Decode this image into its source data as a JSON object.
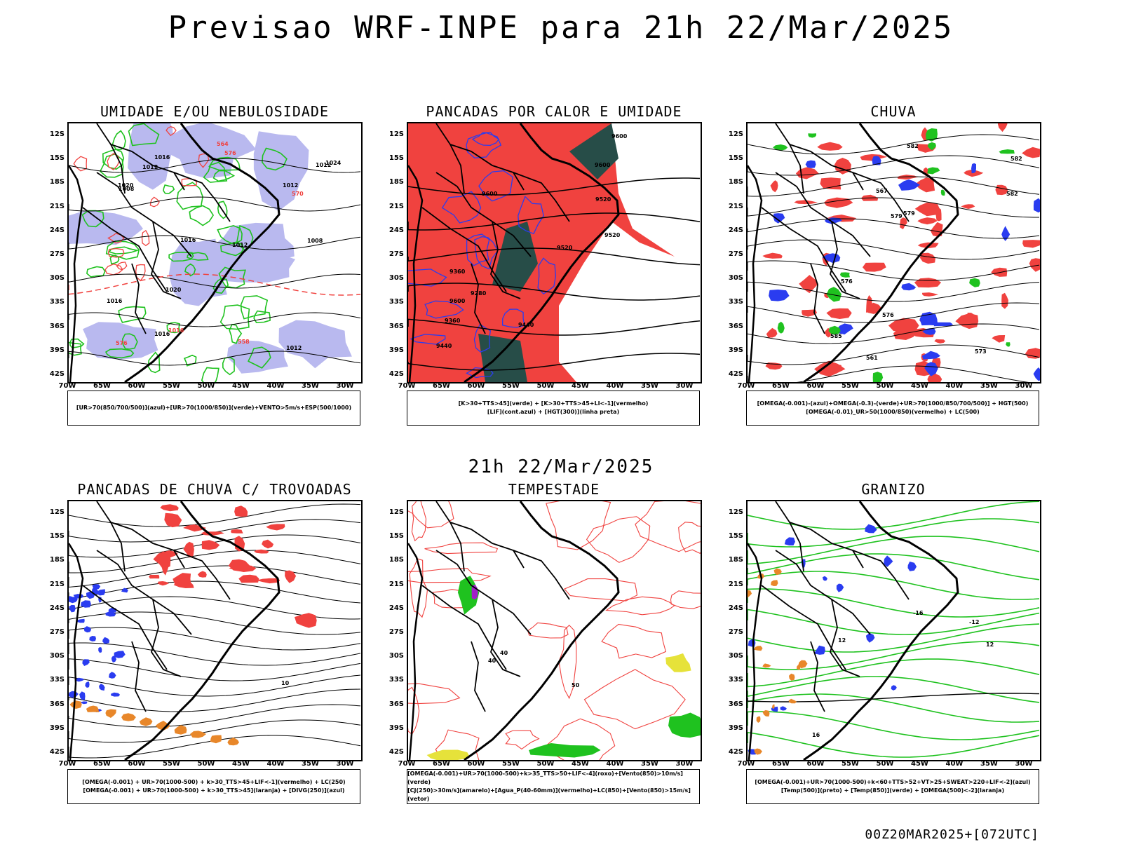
{
  "header": {
    "title": "Previsao WRF-INPE  para 21h 22/Mar/2025",
    "mid_time": "21h 22/Mar/2025",
    "footer": "00Z20MAR2025+[072UTC]"
  },
  "axes": {
    "lat_labels": [
      "12S",
      "15S",
      "18S",
      "21S",
      "24S",
      "27S",
      "30S",
      "33S",
      "36S",
      "39S",
      "42S"
    ],
    "lon_labels": [
      "70W",
      "65W",
      "60W",
      "55W",
      "50W",
      "45W",
      "40W",
      "35W",
      "30W"
    ]
  },
  "panels": [
    {
      "id": "umidade",
      "title": "UMIDADE E/OU NEBULOSIDADE",
      "legend": [
        "[UR>70(850/700/500)](azul)+[UR>70(1000/850)](verde)+VENTO>5m/s+ESP(500/1000)"
      ],
      "contour_labels": [
        "1012",
        "1008",
        "1016",
        "1012",
        "1016",
        "1008",
        "1012",
        "1016",
        "1020",
        "1012",
        "1012",
        "1016",
        "1020",
        "1024",
        "1016",
        "576",
        "576",
        "570",
        "564",
        "558"
      ]
    },
    {
      "id": "pancadas-calor",
      "title": "PANCADAS POR CALOR E UMIDADE",
      "legend": [
        "[K>30+TTS>45](verde) + [K>30+TTS>45+LI<-1](vermelho)",
        "[LIF](cont.azul) + [HGT(300)](linha preta)"
      ],
      "contour_labels": [
        "9600",
        "9600",
        "9520",
        "9600",
        "9520",
        "9520",
        "9440",
        "9440",
        "9360",
        "9280",
        "9360",
        "9600"
      ]
    },
    {
      "id": "chuva",
      "title": "CHUVA",
      "legend": [
        "[OMEGA(-0.001)-(azul)+OMEGA(-0.3)-(verde)+UR>70(1000/850/700/500)] + HGT(500)",
        "[OMEGA(-0.01)_UR>50(1000/850)(vermelho) + LC(500)"
      ],
      "contour_labels": [
        "585",
        "582",
        "582",
        "579",
        "582",
        "576",
        "579",
        "576",
        "573",
        "567",
        "561"
      ]
    },
    {
      "id": "trovoadas",
      "title": "PANCADAS DE CHUVA C/ TROVOADAS",
      "legend": [
        "[OMEGA(-0.001) + UR>70(1000-500) + k>30_TTS>45+LIF<-1](vermelho) + LC(250)",
        "[OMEGA(-0.001) + UR>70(1000-500) + k>30_TTS>45](laranja) + [DIVG(250)](azul)"
      ],
      "contour_labels": [
        "10"
      ]
    },
    {
      "id": "tempestade",
      "title": "TEMPESTADE",
      "legend": [
        "[OMEGA(-0.001)+UR>70(1000-500)+k>35_TTS>50+LIF<-4](roxo)+[Vento(850)>10m/s](verde)",
        "[CJ(250)>30m/s](amarelo)+[Agua_P(40-60mm)](vermelho)+LC(850)+[Vento(850)>15m/s](vetor)"
      ],
      "contour_labels": [
        "40",
        "40",
        "50"
      ]
    },
    {
      "id": "granizo",
      "title": "GRANIZO",
      "legend": [
        "[OMEGA(-0.001)+UR>70(1000-500)+k<60+TTS>52+VT>25+SWEAT>220+LIF<-2](azul)",
        "[Temp(500)](preto) + [Temp(850)](verde) + [OMEGA(500)<-2](laranja)"
      ],
      "contour_labels": [
        "-12",
        "-16",
        "12",
        "16",
        "12"
      ]
    }
  ],
  "colors": {
    "blue": "#2a3cf0",
    "green": "#1fc21f",
    "red": "#f0423f",
    "lavender": "#b9b9ef",
    "darkteal": "#274d48",
    "orange": "#e8872a",
    "yellow": "#e6e23a",
    "purple": "#a21fc8"
  }
}
